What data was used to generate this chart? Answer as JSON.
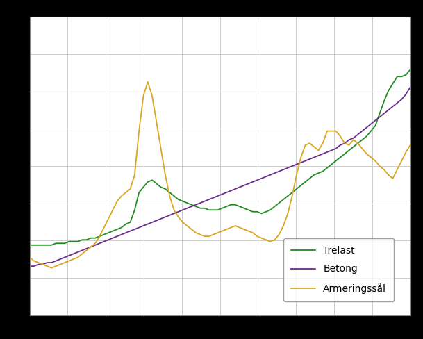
{
  "background_color": "#000000",
  "plot_bg_color": "#ffffff",
  "grid_color": "#cccccc",
  "legend_labels": [
    "Trelast",
    "Betong",
    "Armeringssål"
  ],
  "line_colors": [
    "#228B22",
    "#6B2D8B",
    "#DAA520"
  ],
  "line_width": 1.3,
  "ylim": [
    60,
    230
  ],
  "xlim": [
    0,
    87
  ],
  "n_points": 88,
  "legend_fontsize": 10,
  "trelast": [
    100,
    100,
    100,
    100,
    100,
    100,
    101,
    101,
    101,
    102,
    102,
    102,
    103,
    103,
    104,
    104,
    105,
    106,
    107,
    108,
    109,
    110,
    112,
    113,
    120,
    130,
    133,
    136,
    137,
    135,
    133,
    132,
    130,
    128,
    126,
    125,
    124,
    123,
    122,
    121,
    121,
    120,
    120,
    120,
    121,
    122,
    123,
    123,
    122,
    121,
    120,
    119,
    119,
    118,
    119,
    120,
    122,
    124,
    126,
    128,
    130,
    132,
    134,
    136,
    138,
    140,
    141,
    142,
    144,
    146,
    148,
    150,
    152,
    154,
    156,
    158,
    160,
    162,
    165,
    168,
    175,
    182,
    188,
    192,
    196,
    196,
    197,
    200
  ],
  "betong": [
    88,
    88,
    89,
    89,
    90,
    90,
    91,
    92,
    93,
    94,
    95,
    96,
    97,
    98,
    99,
    100,
    101,
    102,
    103,
    104,
    105,
    106,
    107,
    108,
    109,
    110,
    111,
    112,
    113,
    114,
    115,
    116,
    117,
    118,
    119,
    120,
    121,
    122,
    123,
    124,
    125,
    126,
    127,
    128,
    129,
    130,
    131,
    132,
    133,
    134,
    135,
    136,
    137,
    138,
    139,
    140,
    141,
    142,
    143,
    144,
    145,
    146,
    147,
    148,
    149,
    150,
    151,
    152,
    153,
    154,
    155,
    157,
    158,
    160,
    161,
    163,
    165,
    167,
    169,
    171,
    173,
    175,
    177,
    179,
    181,
    183,
    186,
    190
  ],
  "armeringsstaal": [
    93,
    91,
    90,
    89,
    88,
    87,
    88,
    89,
    90,
    91,
    92,
    93,
    95,
    97,
    99,
    101,
    105,
    110,
    115,
    120,
    125,
    128,
    130,
    132,
    140,
    165,
    185,
    193,
    185,
    170,
    155,
    140,
    128,
    120,
    116,
    113,
    111,
    109,
    107,
    106,
    105,
    105,
    106,
    107,
    108,
    109,
    110,
    111,
    110,
    109,
    108,
    107,
    105,
    104,
    103,
    102,
    103,
    106,
    111,
    118,
    128,
    140,
    150,
    157,
    158,
    156,
    154,
    158,
    165,
    165,
    165,
    162,
    158,
    157,
    160,
    158,
    155,
    152,
    150,
    148,
    145,
    143,
    140,
    138,
    143,
    148,
    153,
    157
  ]
}
